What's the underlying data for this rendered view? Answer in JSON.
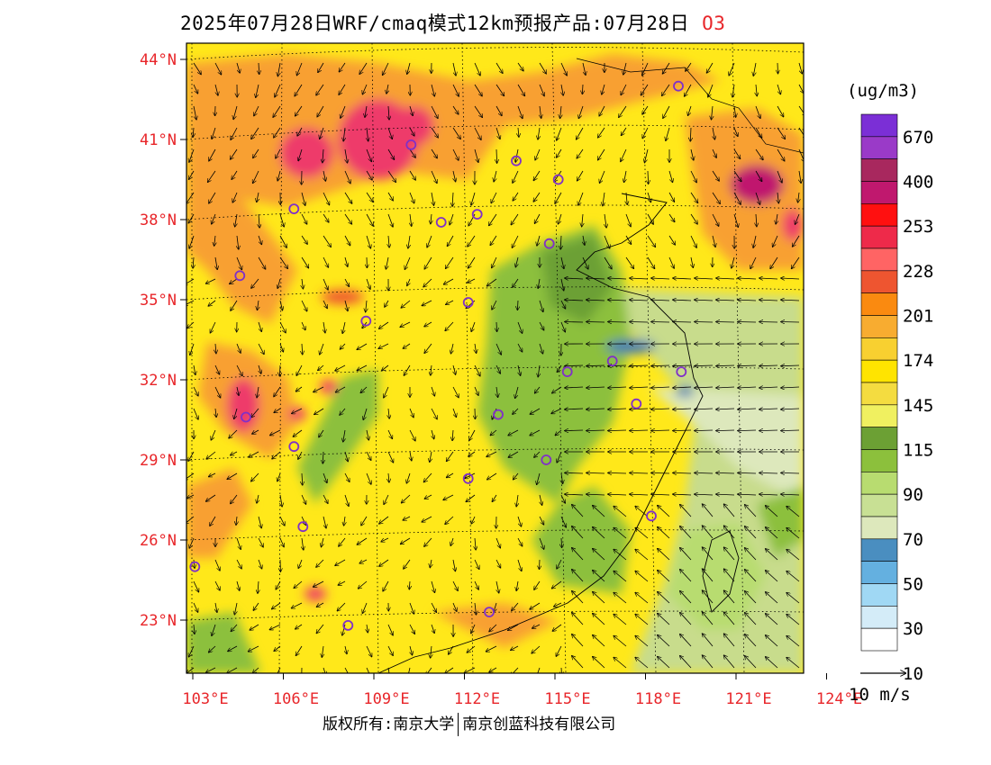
{
  "title": "2025年07月28日WRF/cmaq模式12km预报产品:07月28日",
  "species": "O3",
  "credit_left": "版权所有:南京大学",
  "credit_right": "南京创蓝科技有限公司",
  "lat_labels": [
    "44°N",
    "41°N",
    "38°N",
    "35°N",
    "32°N",
    "29°N",
    "26°N",
    "23°N"
  ],
  "lon_labels": [
    "103°E",
    "106°E",
    "109°E",
    "112°E",
    "115°E",
    "118°E",
    "121°E",
    "124°E"
  ],
  "colorbar": {
    "unit": "(ug/m3)",
    "labels": [
      "670",
      "400",
      "253",
      "228",
      "201",
      "174",
      "145",
      "115",
      "90",
      "70",
      "50",
      "30",
      "10"
    ],
    "colors": [
      "#7b2fd6",
      "#9a3ac8",
      "#a8285e",
      "#c0186e",
      "#ff1010",
      "#ee2a4a",
      "#ff6464",
      "#ee5530",
      "#fa8a10",
      "#f8ac30",
      "#f8d030",
      "#ffe400",
      "#f4dc40",
      "#f0f060",
      "#6ca034",
      "#8cc03c",
      "#b8dc70",
      "#c8e094",
      "#dde8bc",
      "#4a8ec0",
      "#64b0e0",
      "#a0d8f4",
      "#d4ecf8",
      "#ffffff"
    ]
  },
  "vector_legend": "10 m/s",
  "map_colors": {
    "ocean_green": "#c8dc8c",
    "land_yellow": "#ffe81a",
    "orange": "#f8a030",
    "pink": "#ee3a6a",
    "green": "#6ca034",
    "blue": "#3e78b8",
    "label_red": "#e8262a",
    "city_circle": "#8030c8"
  },
  "cities": [
    {
      "lon": 119.2,
      "lat": 43.0
    },
    {
      "lon": 110.3,
      "lat": 40.8
    },
    {
      "lon": 113.8,
      "lat": 40.2
    },
    {
      "lon": 115.2,
      "lat": 39.5
    },
    {
      "lon": 106.4,
      "lat": 38.4
    },
    {
      "lon": 111.3,
      "lat": 37.9
    },
    {
      "lon": 112.5,
      "lat": 38.2
    },
    {
      "lon": 114.9,
      "lat": 37.1
    },
    {
      "lon": 104.6,
      "lat": 35.9
    },
    {
      "lon": 112.2,
      "lat": 34.9
    },
    {
      "lon": 108.8,
      "lat": 34.2
    },
    {
      "lon": 117.0,
      "lat": 32.7
    },
    {
      "lon": 119.3,
      "lat": 32.3
    },
    {
      "lon": 115.5,
      "lat": 32.3
    },
    {
      "lon": 117.8,
      "lat": 31.1
    },
    {
      "lon": 104.8,
      "lat": 30.6
    },
    {
      "lon": 113.2,
      "lat": 30.7
    },
    {
      "lon": 106.4,
      "lat": 29.5
    },
    {
      "lon": 114.8,
      "lat": 29.0
    },
    {
      "lon": 112.2,
      "lat": 28.3
    },
    {
      "lon": 106.7,
      "lat": 26.5
    },
    {
      "lon": 118.3,
      "lat": 26.9
    },
    {
      "lon": 103.1,
      "lat": 25.0
    },
    {
      "lon": 112.9,
      "lat": 23.3
    },
    {
      "lon": 108.2,
      "lat": 22.8
    }
  ]
}
